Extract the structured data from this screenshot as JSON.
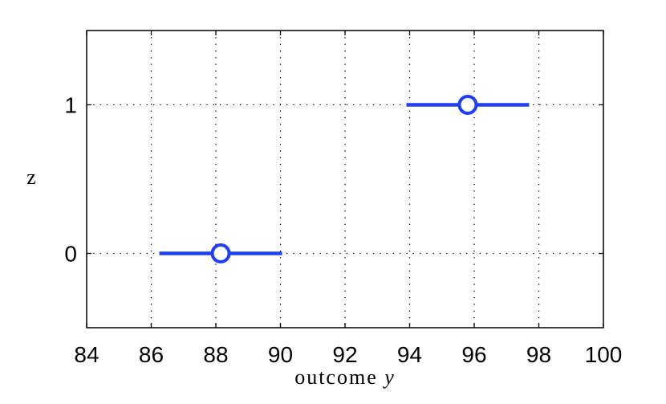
{
  "chart_data": {
    "type": "scatter",
    "xlabel": "outcome",
    "xlabel_var": "y",
    "ylabel": "z",
    "xlim": [
      84,
      100
    ],
    "ylim": [
      -0.5,
      1.5
    ],
    "xticks": [
      "84",
      "86",
      "88",
      "90",
      "92",
      "94",
      "96",
      "98",
      "100"
    ],
    "yticks": [
      "0",
      "1"
    ],
    "grid": true,
    "points": [
      {
        "y": 0,
        "x": 88.15,
        "x_low": 86.25,
        "x_high": 90.05
      },
      {
        "y": 1,
        "x": 95.8,
        "x_low": 93.9,
        "x_high": 97.7
      }
    ],
    "color": "#1f3ff0"
  }
}
